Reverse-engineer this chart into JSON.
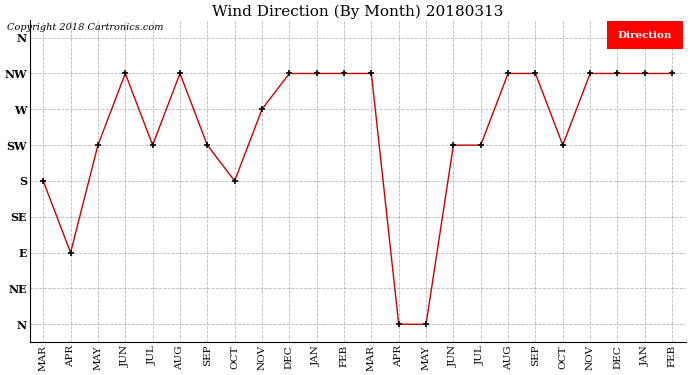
{
  "title": "Wind Direction (By Month) 20180313",
  "copyright": "Copyright 2018 Cartronics.com",
  "legend_label": "Direction",
  "legend_bg": "#ff0000",
  "legend_text_color": "#ffffff",
  "x_labels": [
    "MAR",
    "APR",
    "MAY",
    "JUN",
    "JUL",
    "AUG",
    "SEP",
    "OCT",
    "NOV",
    "DEC",
    "JAN",
    "FEB",
    "MAR",
    "APR",
    "MAY",
    "JUN",
    "JUL",
    "AUG",
    "SEP",
    "OCT",
    "NOV",
    "DEC",
    "JAN",
    "FEB"
  ],
  "y_labels": [
    "N",
    "NE",
    "E",
    "SE",
    "S",
    "SW",
    "W",
    "NW",
    "N"
  ],
  "y_values": [
    0,
    1,
    2,
    3,
    4,
    5,
    6,
    7,
    8
  ],
  "data_values": [
    4,
    2,
    5,
    7,
    5,
    7,
    5,
    4,
    6,
    7,
    7,
    7,
    7,
    0,
    0,
    5,
    5,
    7,
    7,
    5,
    7,
    7,
    7,
    7
  ],
  "line_color": "#cc0000",
  "marker_color": "#000000",
  "bg_color": "#ffffff",
  "grid_color": "#999999",
  "title_fontsize": 11,
  "copyright_fontsize": 7,
  "axis_label_fontsize": 7.5,
  "ytick_fontsize": 8
}
